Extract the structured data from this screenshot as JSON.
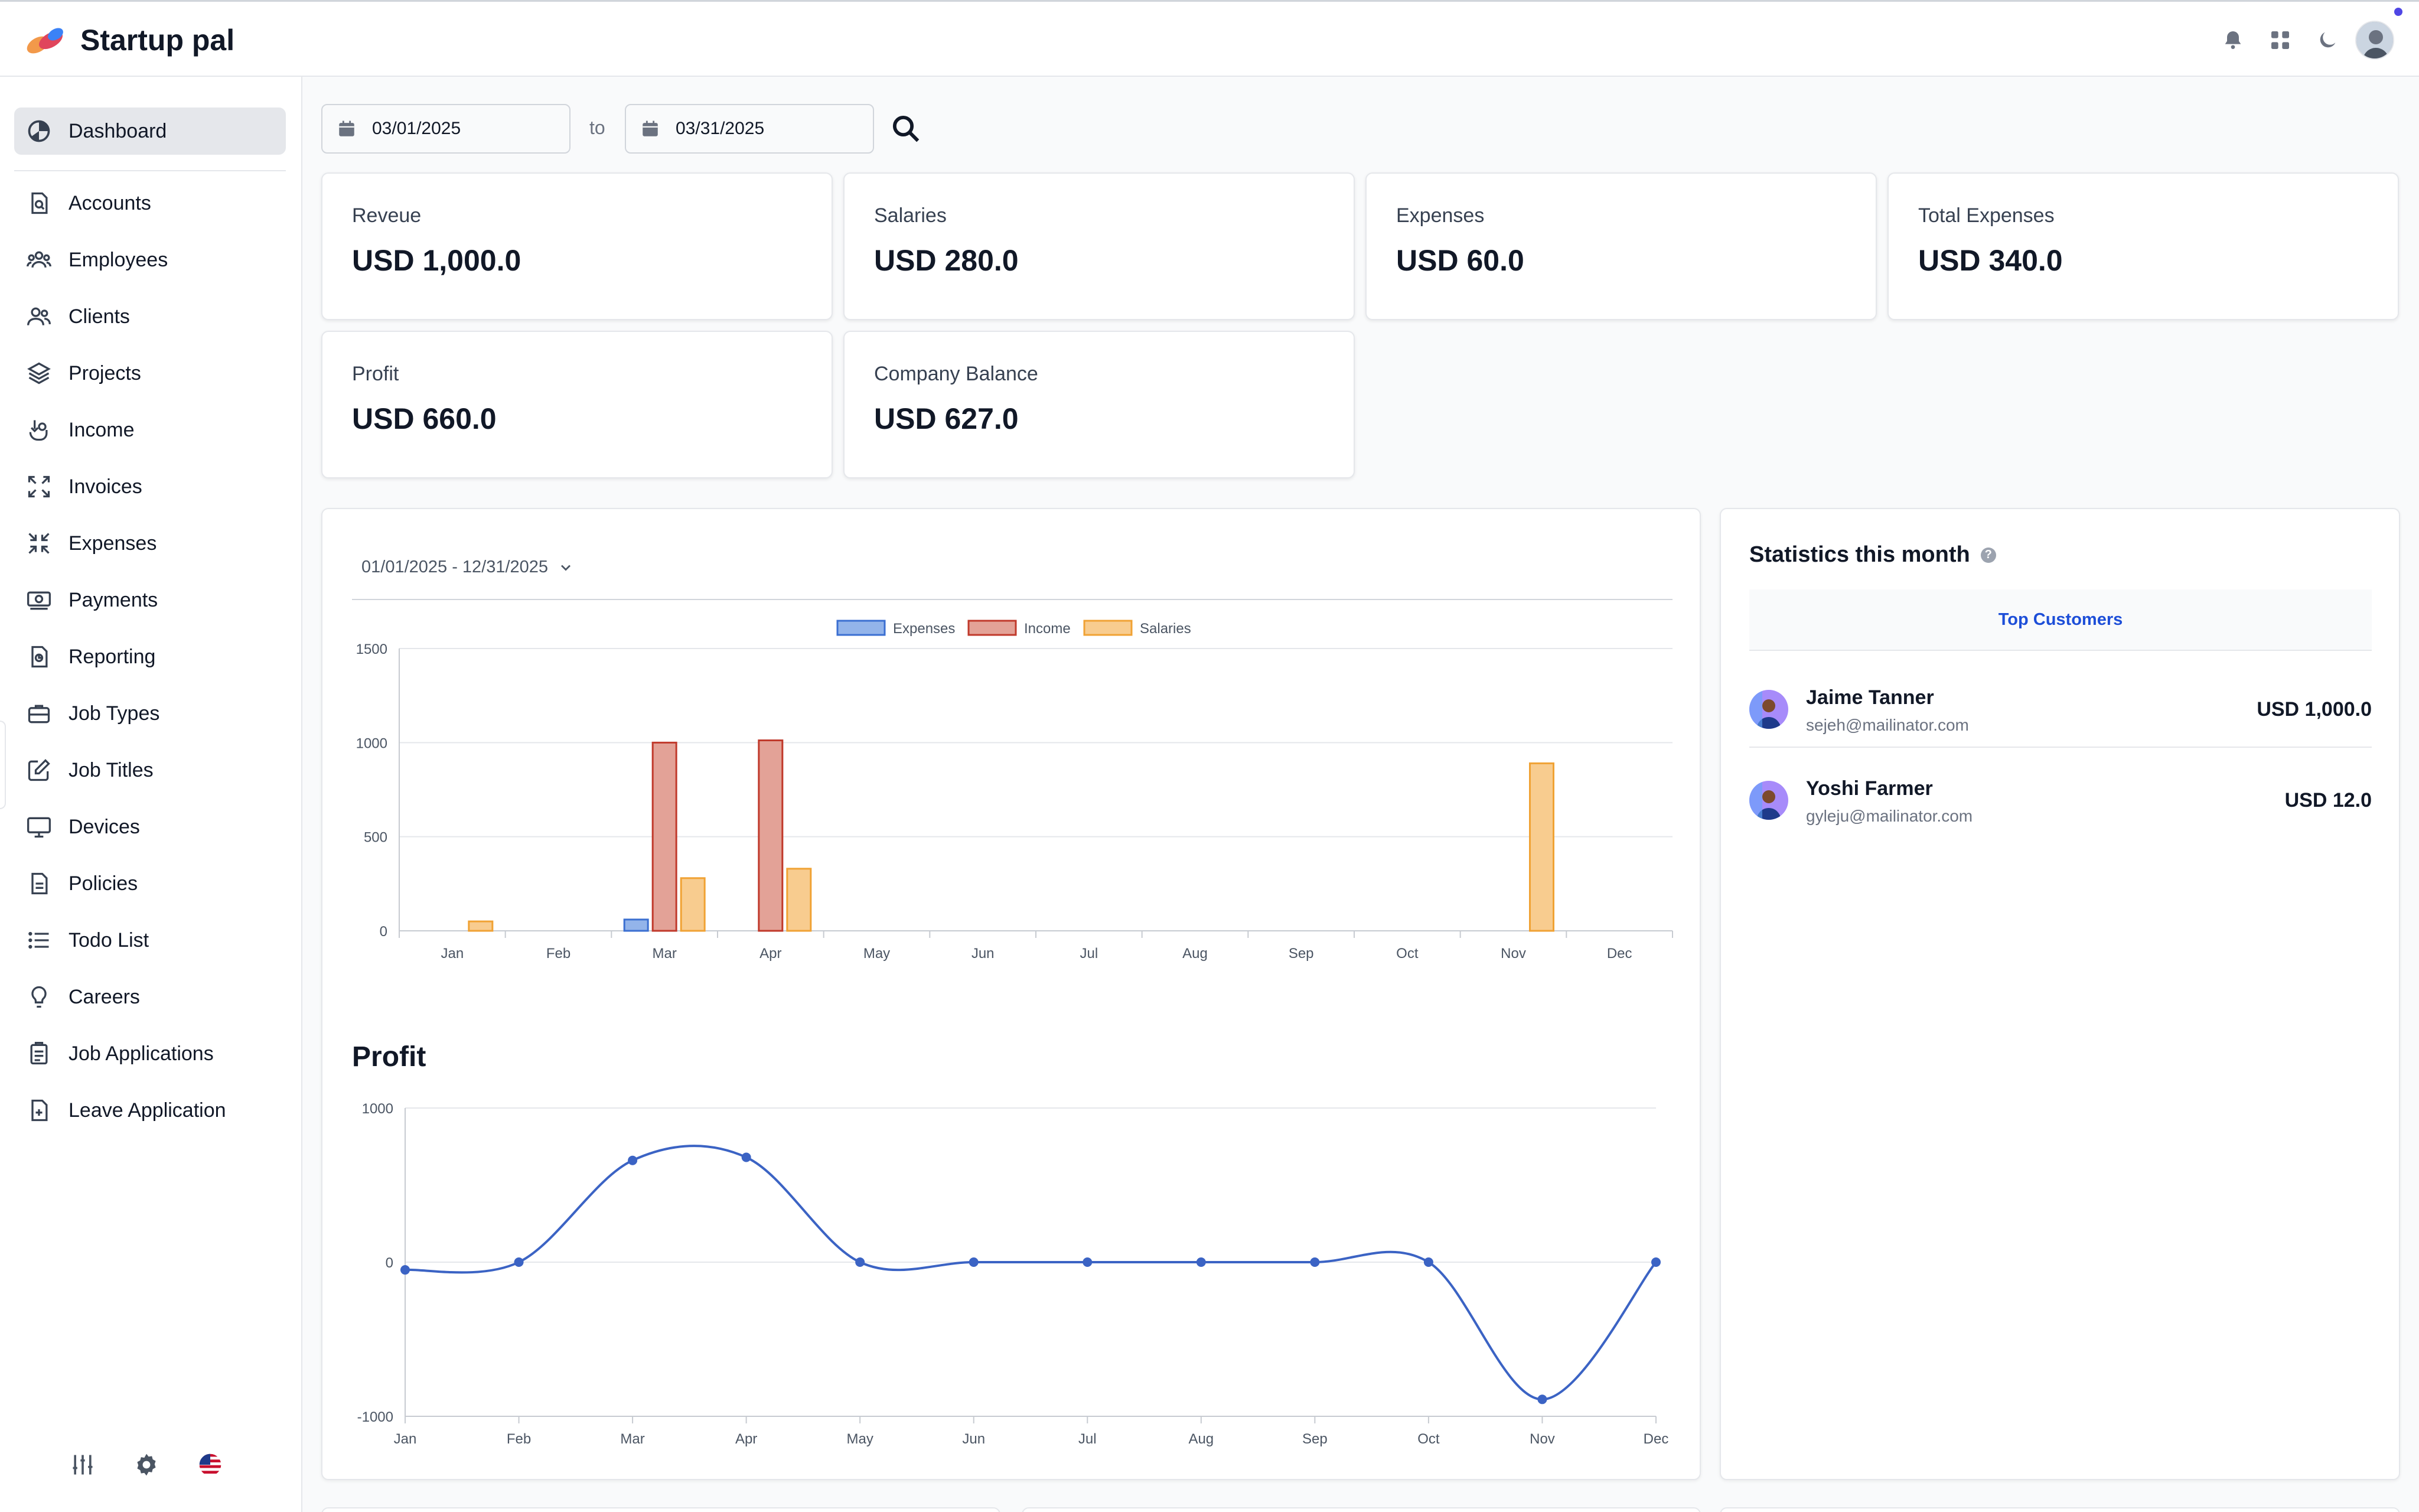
{
  "app": {
    "name": "Startup pal"
  },
  "sidebar": {
    "items": [
      {
        "label": "Dashboard",
        "icon": "pie-chart-icon",
        "active": true
      },
      {
        "label": "Accounts",
        "icon": "file-search-icon"
      },
      {
        "label": "Employees",
        "icon": "users-group-icon"
      },
      {
        "label": "Clients",
        "icon": "users-icon"
      },
      {
        "label": "Projects",
        "icon": "layers-icon"
      },
      {
        "label": "Income",
        "icon": "hand-coin-icon"
      },
      {
        "label": "Invoices",
        "icon": "expand-arrows-icon"
      },
      {
        "label": "Expenses",
        "icon": "collapse-arrows-icon"
      },
      {
        "label": "Payments",
        "icon": "cash-icon"
      },
      {
        "label": "Reporting",
        "icon": "file-report-icon"
      },
      {
        "label": "Job Types",
        "icon": "briefcase-icon"
      },
      {
        "label": "Job Titles",
        "icon": "edit-icon"
      },
      {
        "label": "Devices",
        "icon": "monitor-icon"
      },
      {
        "label": "Policies",
        "icon": "document-icon"
      },
      {
        "label": "Todo List",
        "icon": "list-icon"
      },
      {
        "label": "Careers",
        "icon": "lightbulb-icon"
      },
      {
        "label": "Job Applications",
        "icon": "clipboard-icon"
      },
      {
        "label": "Leave Application",
        "icon": "file-plus-icon"
      }
    ]
  },
  "filters": {
    "from_date": "03/01/2025",
    "to_label": "to",
    "to_date": "03/31/2025"
  },
  "cards": [
    {
      "label": "Reveue",
      "value": "USD 1,000.0"
    },
    {
      "label": "Salaries",
      "value": "USD 280.0"
    },
    {
      "label": "Expenses",
      "value": "USD 60.0"
    },
    {
      "label": "Total Expenses",
      "value": "USD 340.0"
    },
    {
      "label": "Profit",
      "value": "USD 660.0"
    },
    {
      "label": "Company Balance",
      "value": "USD 627.0"
    }
  ],
  "chart_panel": {
    "range": "01/01/2025 - 12/31/2025",
    "profit_title": "Profit"
  },
  "chart_data": [
    {
      "type": "bar",
      "categories": [
        "Jan",
        "Feb",
        "Mar",
        "Apr",
        "May",
        "Jun",
        "Jul",
        "Aug",
        "Sep",
        "Oct",
        "Nov",
        "Dec"
      ],
      "series": [
        {
          "name": "Expenses",
          "values": [
            0,
            0,
            60,
            0,
            0,
            0,
            0,
            0,
            0,
            0,
            0,
            0
          ],
          "color": "#93b4ea",
          "border": "#3b6fd1"
        },
        {
          "name": "Income",
          "values": [
            0,
            0,
            1000,
            1012,
            0,
            0,
            0,
            0,
            0,
            0,
            0,
            0
          ],
          "color": "#e3a297",
          "border": "#c0392b"
        },
        {
          "name": "Salaries",
          "values": [
            50,
            0,
            280,
            330,
            0,
            0,
            0,
            0,
            0,
            0,
            890,
            0
          ],
          "color": "#f8cc8f",
          "border": "#f0a234"
        }
      ],
      "yticks": [
        0,
        500,
        1000,
        1500
      ],
      "ylim": [
        0,
        1500
      ],
      "legend": "top"
    },
    {
      "type": "line",
      "title": "Profit",
      "categories": [
        "Jan",
        "Feb",
        "Mar",
        "Apr",
        "May",
        "Jun",
        "Jul",
        "Aug",
        "Sep",
        "Oct",
        "Nov",
        "Dec"
      ],
      "series": [
        {
          "values": [
            -50,
            0,
            660,
            680,
            0,
            0,
            0,
            0,
            0,
            0,
            -890,
            0
          ],
          "color": "#3b63c4"
        }
      ],
      "yticks": [
        -1000,
        0,
        1000
      ],
      "ylim": [
        -1000,
        1000
      ]
    }
  ],
  "stats": {
    "title": "Statistics this month",
    "help": "?",
    "tab": "Top Customers",
    "customers": [
      {
        "name": "Jaime Tanner",
        "email": "sejeh@mailinator.com",
        "amount": "USD 1,000.0"
      },
      {
        "name": "Yoshi Farmer",
        "email": "gyleju@mailinator.com",
        "amount": "USD 12.0"
      }
    ]
  },
  "icons": {
    "top": [
      "bell-icon",
      "apps-grid-icon",
      "moon-icon",
      "user-avatar"
    ],
    "sidebar_bottom": [
      "sliders-icon",
      "gear-icon",
      "us-flag-icon"
    ]
  }
}
